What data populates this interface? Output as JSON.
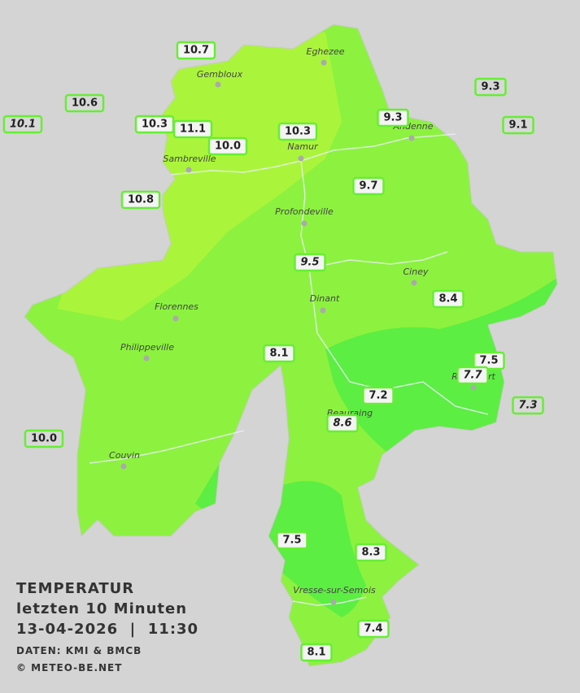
{
  "title": {
    "line1": "TEMPERATUR",
    "line2": "letzten 10 Minuten",
    "line3": "13-04-2026  |  11:30",
    "source": "DATEN: KMI & BMCB",
    "copyright": "© METEO-BE.NET"
  },
  "towns": [
    "Eghezee",
    "Gembloux",
    "Andenne",
    "Namur",
    "Sambreville",
    "Profondeville",
    "Ciney",
    "Dinant",
    "Florennes",
    "Philippeville",
    "Rochefort",
    "Beauraing",
    "Couvin",
    "Vresse-sur-Semois"
  ],
  "stations": [
    "10.7",
    "10.6",
    "10.1",
    "10.3",
    "11.1",
    "10.0",
    "10.3",
    "9.3",
    "9.3",
    "9.1",
    "10.8",
    "9.7",
    "9.5",
    "8.4",
    "8.1",
    "7.5",
    "7.7",
    "7.2",
    "7.3",
    "8.6",
    "10.0",
    "7.5",
    "8.3",
    "7.4",
    "8.1"
  ]
}
